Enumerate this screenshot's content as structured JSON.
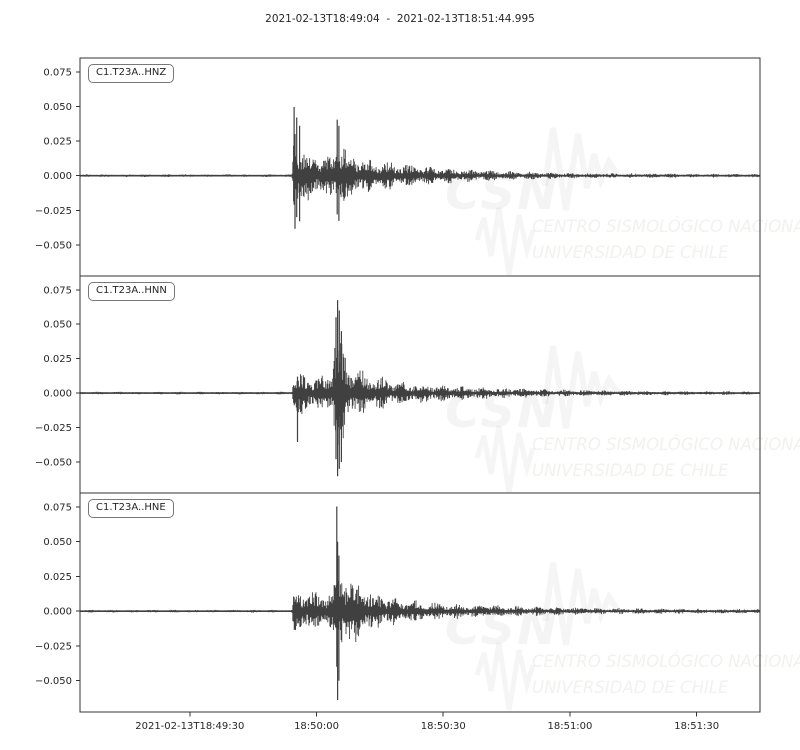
{
  "title": "2021-02-13T18:49:04  -  2021-02-13T18:51:44.995",
  "watermark": {
    "org": "CSN",
    "line1": "CENTRO SISMOLÓGICO NACIONAL",
    "line2": "UNIVERSIDAD DE CHILE"
  },
  "chart_data": {
    "type": "line",
    "subtype": "seismogram-3-panel",
    "time_start": "2021-02-13T18:49:04",
    "time_end": "2021-02-13T18:51:44.995",
    "duration_seconds": 160.995,
    "grid": false,
    "ylim": [
      -0.0725,
      0.085
    ],
    "y_ticks": [
      {
        "v": 0.075,
        "label": "0.075"
      },
      {
        "v": 0.05,
        "label": "0.050"
      },
      {
        "v": 0.025,
        "label": "0.025"
      },
      {
        "v": 0.0,
        "label": "0.000"
      },
      {
        "v": -0.025,
        "label": "−0.025"
      },
      {
        "v": -0.05,
        "label": "−0.050"
      }
    ],
    "x_ticks": [
      {
        "t": 26,
        "label": "2021-02-13T18:49:30"
      },
      {
        "t": 56,
        "label": "18:50:00"
      },
      {
        "t": 86,
        "label": "18:50:30"
      },
      {
        "t": 116,
        "label": "18:51:00"
      },
      {
        "t": 146,
        "label": "18:51:30"
      }
    ],
    "traces": [
      {
        "id": "C1.T23A..HNZ",
        "onset_seconds": 50.4,
        "peak_amplitude": 0.05,
        "min_amplitude": -0.038,
        "envelope": [
          [
            0,
            0.001
          ],
          [
            50.2,
            0.001
          ],
          [
            50.5,
            0.03
          ],
          [
            51.5,
            0.03
          ],
          [
            52.5,
            0.024
          ],
          [
            54,
            0.02
          ],
          [
            56,
            0.017
          ],
          [
            58,
            0.015
          ],
          [
            60,
            0.016
          ],
          [
            60.8,
            0.03
          ],
          [
            62,
            0.028
          ],
          [
            63.5,
            0.02
          ],
          [
            65,
            0.016
          ],
          [
            68,
            0.013
          ],
          [
            72,
            0.011
          ],
          [
            76,
            0.009
          ],
          [
            80,
            0.0075
          ],
          [
            86,
            0.006
          ],
          [
            92,
            0.0048
          ],
          [
            100,
            0.0035
          ],
          [
            110,
            0.0026
          ],
          [
            120,
            0.002
          ],
          [
            135,
            0.0016
          ],
          [
            161,
            0.0013
          ]
        ],
        "spikes": [
          [
            50.7,
            0.0497,
            0.021
          ],
          [
            50.9,
            0.03,
            0.0384
          ],
          [
            51.3,
            0.042,
            0.03
          ],
          [
            52.0,
            0.036,
            0.033
          ],
          [
            60.9,
            0.0405,
            0.028
          ],
          [
            61.3,
            0.036,
            0.0327
          ]
        ]
      },
      {
        "id": "C1.T23A..HNN",
        "onset_seconds": 50.4,
        "peak_amplitude": 0.067,
        "min_amplitude": -0.06,
        "envelope": [
          [
            0,
            0.001
          ],
          [
            50.2,
            0.001
          ],
          [
            50.5,
            0.016
          ],
          [
            52,
            0.017
          ],
          [
            54,
            0.014
          ],
          [
            56,
            0.013
          ],
          [
            58,
            0.014
          ],
          [
            59.8,
            0.018
          ],
          [
            60.3,
            0.05
          ],
          [
            61.5,
            0.05
          ],
          [
            62.5,
            0.032
          ],
          [
            64,
            0.024
          ],
          [
            66,
            0.018
          ],
          [
            69,
            0.014
          ],
          [
            73,
            0.011
          ],
          [
            78,
            0.0085
          ],
          [
            84,
            0.0065
          ],
          [
            92,
            0.005
          ],
          [
            100,
            0.004
          ],
          [
            110,
            0.003
          ],
          [
            122,
            0.0022
          ],
          [
            140,
            0.0016
          ],
          [
            161,
            0.0013
          ]
        ],
        "spikes": [
          [
            51.5,
            0.012,
            0.0355
          ],
          [
            60.6,
            0.055,
            0.048
          ],
          [
            61.0,
            0.0675,
            0.0604
          ],
          [
            61.4,
            0.06,
            0.055
          ],
          [
            61.9,
            0.045,
            0.05
          ]
        ]
      },
      {
        "id": "C1.T23A..HNE",
        "onset_seconds": 50.4,
        "peak_amplitude": 0.075,
        "min_amplitude": -0.064,
        "envelope": [
          [
            0,
            0.001
          ],
          [
            50.2,
            0.001
          ],
          [
            50.5,
            0.016
          ],
          [
            52.5,
            0.017
          ],
          [
            55,
            0.015
          ],
          [
            58,
            0.014
          ],
          [
            60,
            0.018
          ],
          [
            60.7,
            0.032
          ],
          [
            61.8,
            0.034
          ],
          [
            63,
            0.03
          ],
          [
            64.5,
            0.026
          ],
          [
            66,
            0.021
          ],
          [
            68.5,
            0.016
          ],
          [
            71,
            0.013
          ],
          [
            75,
            0.01
          ],
          [
            80,
            0.008
          ],
          [
            87,
            0.006
          ],
          [
            95,
            0.0048
          ],
          [
            105,
            0.0036
          ],
          [
            118,
            0.0027
          ],
          [
            135,
            0.002
          ],
          [
            161,
            0.0016
          ]
        ],
        "spikes": [
          [
            60.8,
            0.0753,
            0.04
          ],
          [
            61.0,
            0.05,
            0.0639
          ],
          [
            61.3,
            0.04,
            0.05
          ]
        ]
      }
    ],
    "colors": {
      "waveform": "#404040",
      "axis": "#333333",
      "tick_text": "#262626"
    }
  }
}
